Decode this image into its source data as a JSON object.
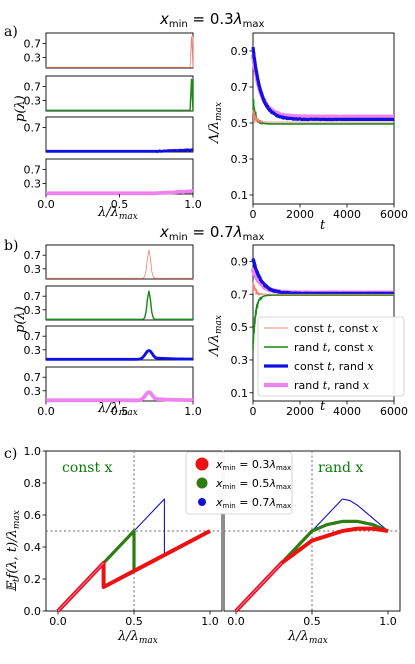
{
  "panel_labels": {
    "a": "a)",
    "b": "b)",
    "c": "c)"
  },
  "headers": {
    "a": "x_min = 0.3λ_max",
    "b": "x_min = 0.7λ_max"
  },
  "axis_labels": {
    "p": "p(λ)",
    "lambda_ratio": "λ/λ_max",
    "Lambda_ratio": "Λ/λ_max",
    "t": "t",
    "expected_f": "E_t f(λ, t)/λ_max"
  },
  "annotations": {
    "const_x": "const x",
    "rand_x": "rand x"
  },
  "legend_ab": [
    "const t, const x",
    "rand t, const x",
    "const t, rand x",
    "rand t, rand x"
  ],
  "legend_c": [
    "x_min = 0.3λ_max",
    "x_min = 0.5λ_max",
    "x_min = 0.7λ_max"
  ],
  "colors": {
    "red": "#f08070",
    "green": "#1a8a1a",
    "blue": "#1010e0",
    "violet": "#ee82ee",
    "c_red": "#ee1111",
    "c_green": "#2d7d10",
    "c_blue": "#1010d0",
    "grid": "#888888"
  },
  "chart_data": [
    {
      "type": "line",
      "panel": "a-left",
      "stacked": 4,
      "xlabel": "λ/λ_max",
      "ylabel": "p(λ)",
      "xlim": [
        0,
        1
      ],
      "ylim": [
        0,
        1
      ],
      "xticks": [
        "0.0",
        "0.5",
        "1.0"
      ],
      "subplots": [
        {
          "series": "const t, const x",
          "yticks": [
            "0.3",
            "0.7"
          ],
          "baseline": 0.02,
          "peak_x": 1.0,
          "peak_y": 0.9
        },
        {
          "series": "rand t, const x",
          "yticks": [
            "0.3",
            "0.7"
          ],
          "baseline": 0.02,
          "peak_x": 1.0,
          "peak_y": 0.9
        },
        {
          "series": "const t, rand x",
          "yticks": [
            "0.7"
          ],
          "baseline": 0.02,
          "rise_from": 0.75,
          "rise_to": 0.06
        },
        {
          "series": "rand t, rand x",
          "yticks": [
            "0.3",
            "0.7"
          ],
          "baseline": 0.02,
          "rise_from": 0.75,
          "rise_to": 0.08
        }
      ]
    },
    {
      "type": "line",
      "panel": "a-right",
      "xlabel": "t",
      "ylabel": "Λ/λ_max",
      "xlim": [
        0,
        6000
      ],
      "ylim": [
        0.05,
        1.0
      ],
      "xticks": [
        0,
        2000,
        4000,
        6000
      ],
      "yticks": [
        0.1,
        0.3,
        0.5,
        0.7,
        0.9
      ],
      "series": [
        {
          "name": "const t, const x",
          "start": 0.55,
          "final": 0.505
        },
        {
          "name": "rand t, const x",
          "start": 0.62,
          "final": 0.495
        },
        {
          "name": "const t, rand x",
          "start": 0.92,
          "final": 0.52
        },
        {
          "name": "rand t, rand x",
          "start": 0.88,
          "final": 0.535
        }
      ]
    },
    {
      "type": "line",
      "panel": "b-left",
      "stacked": 4,
      "xlabel": "λ/λ_max",
      "ylabel": "p(λ)",
      "xlim": [
        0,
        1
      ],
      "ylim": [
        0,
        1
      ],
      "xticks": [
        "0.0",
        "0.5",
        "1.0"
      ],
      "subplots": [
        {
          "series": "const t, const x",
          "yticks": [
            "0.3",
            "0.7"
          ],
          "baseline": 0.02,
          "peak_x": 0.7,
          "peak_y": 0.85
        },
        {
          "series": "rand t, const x",
          "yticks": [
            "0.3",
            "0.7"
          ],
          "baseline": 0.02,
          "peak_x": 0.7,
          "peak_y": 0.85
        },
        {
          "series": "const t, rand x",
          "yticks": [
            "0.3",
            "0.7"
          ],
          "baseline": 0.02,
          "peak_x": 0.7,
          "peak_y": 0.28
        },
        {
          "series": "rand t, rand x",
          "yticks": [
            "0.3",
            "0.7"
          ],
          "baseline": 0.02,
          "peak_x": 0.7,
          "peak_y": 0.26
        }
      ]
    },
    {
      "type": "line",
      "panel": "b-right",
      "xlabel": "t",
      "ylabel": "Λ/λ_max",
      "xlim": [
        0,
        6000
      ],
      "ylim": [
        0.05,
        1.0
      ],
      "xticks": [
        0,
        2000,
        4000,
        6000
      ],
      "yticks": [
        0.1,
        0.3,
        0.5,
        0.7,
        0.9
      ],
      "series": [
        {
          "name": "const t, const x",
          "start": 0.75,
          "final": 0.7
        },
        {
          "name": "rand t, const x",
          "start": 0.4,
          "final": 0.695
        },
        {
          "name": "const t, rand x",
          "start": 0.92,
          "final": 0.705
        },
        {
          "name": "rand t, rand x",
          "start": 0.85,
          "final": 0.71
        }
      ]
    },
    {
      "type": "line",
      "panel": "c",
      "xlabel": "λ/λ_max",
      "ylabel": "E_t f(λ, t)/λ_max",
      "xlim": [
        0,
        1
      ],
      "ylim": [
        0,
        1
      ],
      "xticks": [
        "0.0",
        "0.5",
        "1.0"
      ],
      "yticks": [
        "0.0",
        "0.2",
        "0.4",
        "0.6",
        "0.8",
        "1.0"
      ],
      "dotted_guides": {
        "x": 0.5,
        "y": 0.5
      },
      "const_x": [
        {
          "name": "x_min = 0.3λ_max",
          "x": [
            0,
            0.3,
            0.3,
            1.0
          ],
          "y": [
            0,
            0.3,
            0.15,
            0.5
          ]
        },
        {
          "name": "x_min = 0.5λ_max",
          "x": [
            0,
            0.5,
            0.5,
            1.0
          ],
          "y": [
            0,
            0.5,
            0.25,
            0.5
          ]
        },
        {
          "name": "x_min = 0.7λ_max",
          "x": [
            0,
            0.7,
            0.7,
            1.0
          ],
          "y": [
            0,
            0.7,
            0.35,
            0.5
          ]
        }
      ],
      "rand_x": [
        {
          "name": "x_min = 0.3λ_max",
          "x": [
            0,
            0.3,
            0.5,
            0.7,
            0.8,
            0.9,
            1.0
          ],
          "y": [
            0,
            0.3,
            0.44,
            0.5,
            0.515,
            0.515,
            0.5
          ]
        },
        {
          "name": "x_min = 0.5λ_max",
          "x": [
            0,
            0.5,
            0.6,
            0.7,
            0.8,
            0.9,
            1.0
          ],
          "y": [
            0,
            0.5,
            0.54,
            0.56,
            0.56,
            0.54,
            0.5
          ]
        },
        {
          "name": "x_min = 0.7λ_max",
          "x": [
            0,
            0.7,
            0.75,
            0.8,
            0.9,
            1.0
          ],
          "y": [
            0,
            0.7,
            0.69,
            0.66,
            0.58,
            0.5
          ]
        }
      ]
    }
  ]
}
